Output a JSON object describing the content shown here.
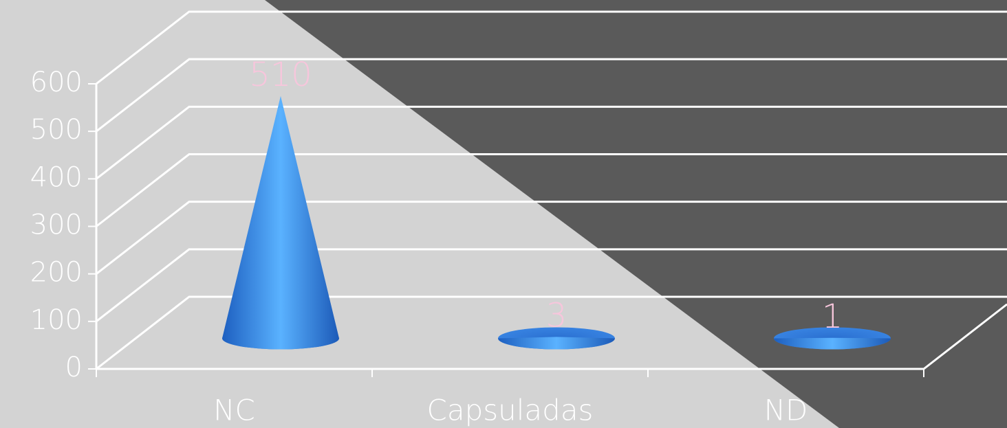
{
  "chart_data": {
    "type": "cone",
    "categories": [
      "NC",
      "Capsuladas",
      "ND"
    ],
    "values": [
      510,
      3,
      1
    ],
    "color": "#3f8ee8",
    "label_color": "#f7c6dc",
    "ylim": [
      0,
      600
    ],
    "yticks": [
      0,
      100,
      200,
      300,
      400,
      500,
      600
    ],
    "grid": true
  }
}
